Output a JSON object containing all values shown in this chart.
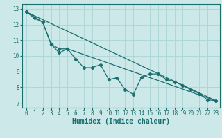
{
  "xlabel": "Humidex (Indice chaleur)",
  "bg_color": "#cce8e8",
  "line_color": "#1a6e6e",
  "grid_color": "#aad4d4",
  "spine_color": "#1a6e6e",
  "xlim": [
    -0.5,
    23.5
  ],
  "ylim": [
    6.7,
    13.3
  ],
  "xticks": [
    0,
    1,
    2,
    3,
    4,
    5,
    6,
    7,
    8,
    9,
    10,
    11,
    12,
    13,
    14,
    15,
    16,
    17,
    18,
    19,
    20,
    21,
    22,
    23
  ],
  "yticks": [
    7,
    8,
    9,
    10,
    11,
    12,
    13
  ],
  "series1_x": [
    0,
    1,
    2,
    3,
    4,
    5,
    6,
    7,
    8,
    9,
    10,
    11,
    12,
    13,
    14,
    15,
    16,
    17,
    18,
    19,
    20,
    21,
    22,
    23
  ],
  "series1_y": [
    12.8,
    12.4,
    12.15,
    10.75,
    10.2,
    10.45,
    9.8,
    9.25,
    9.25,
    9.45,
    8.5,
    8.6,
    7.85,
    7.55,
    8.65,
    8.85,
    8.85,
    8.5,
    8.35,
    8.1,
    7.85,
    7.6,
    7.2,
    7.15
  ],
  "series2_x": [
    0,
    2,
    3,
    4,
    5,
    23
  ],
  "series2_y": [
    12.8,
    12.15,
    10.75,
    10.45,
    10.45,
    7.15
  ],
  "trend_x": [
    0,
    23
  ],
  "trend_y": [
    12.8,
    7.15
  ],
  "tick_fontsize": 5.5,
  "xlabel_fontsize": 7,
  "marker_size": 2.2
}
